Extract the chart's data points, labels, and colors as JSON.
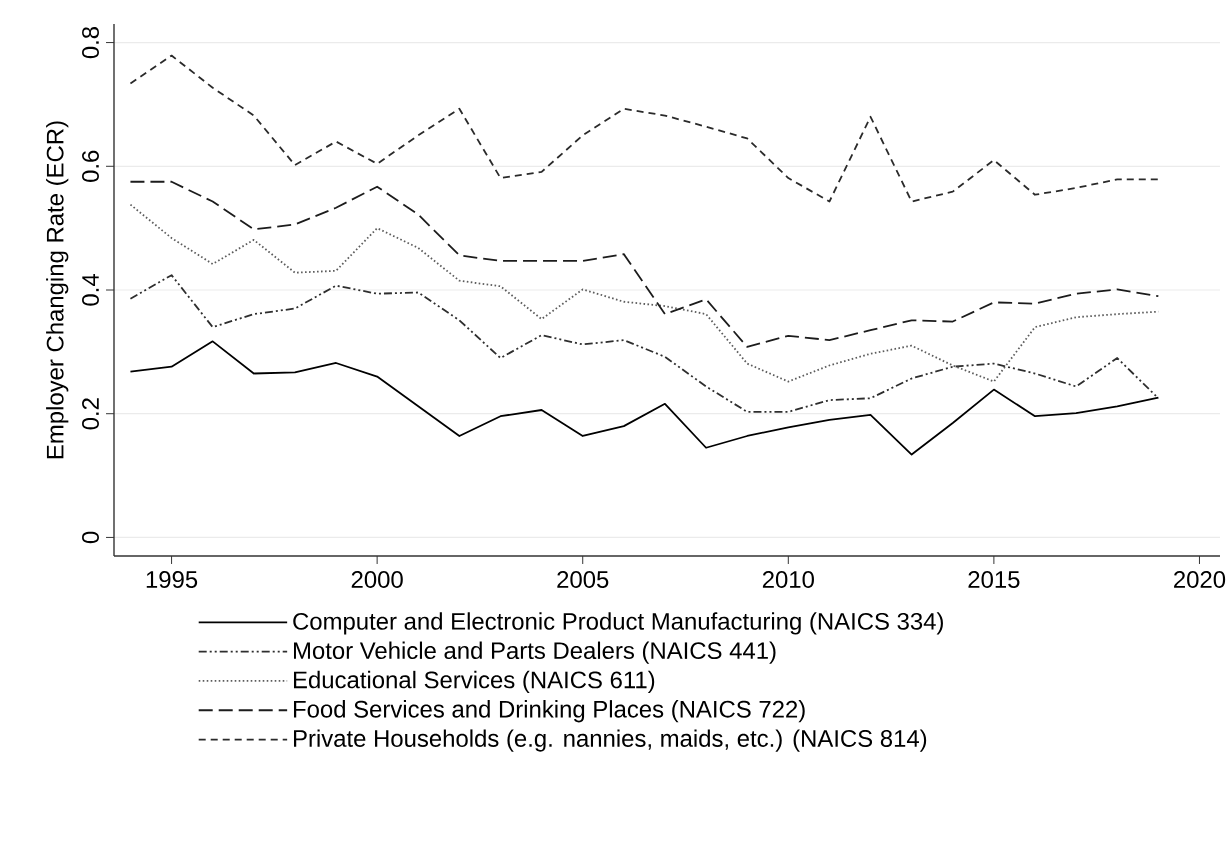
{
  "chart_data": {
    "type": "line",
    "ylabel": "Employer Changing Rate (ECR)",
    "x": [
      1994,
      1995,
      1996,
      1997,
      1998,
      1999,
      2000,
      2001,
      2002,
      2003,
      2004,
      2005,
      2006,
      2007,
      2008,
      2009,
      2010,
      2011,
      2012,
      2013,
      2014,
      2015,
      2016,
      2017,
      2018,
      2019
    ],
    "series": [
      {
        "name": "Computer and Electronic Product Manufacturing (NAICS 334)",
        "color": "#000000",
        "line_style": "solid",
        "values": [
          0.268,
          0.276,
          0.317,
          0.265,
          0.267,
          0.282,
          0.26,
          0.212,
          0.164,
          0.196,
          0.206,
          0.164,
          0.18,
          0.216,
          0.145,
          0.164,
          0.178,
          0.19,
          0.198,
          0.134,
          0.185,
          0.239,
          0.196,
          0.201,
          0.212,
          0.226
        ]
      },
      {
        "name": "Motor Vehicle and Parts Dealers (NAICS 441)",
        "color": "#2e2e2e",
        "line_style": "dashdot",
        "values": [
          0.386,
          0.424,
          0.34,
          0.361,
          0.37,
          0.407,
          0.394,
          0.396,
          0.351,
          0.29,
          0.327,
          0.312,
          0.319,
          0.292,
          0.244,
          0.203,
          0.203,
          0.222,
          0.225,
          0.257,
          0.276,
          0.281,
          0.265,
          0.244,
          0.29,
          0.225
        ]
      },
      {
        "name": "Educational Services (NAICS 611)",
        "color": "#5c5c5c",
        "line_style": "dotted",
        "values": [
          0.538,
          0.484,
          0.442,
          0.481,
          0.428,
          0.431,
          0.5,
          0.468,
          0.415,
          0.406,
          0.353,
          0.401,
          0.381,
          0.374,
          0.361,
          0.281,
          0.252,
          0.278,
          0.297,
          0.31,
          0.278,
          0.252,
          0.34,
          0.356,
          0.361,
          0.365
        ]
      },
      {
        "name": "Food Services and Drinking Places (NAICS 722)",
        "color": "#1c1c1c",
        "line_style": "long dashed",
        "values": [
          0.575,
          0.575,
          0.543,
          0.498,
          0.506,
          0.533,
          0.567,
          0.522,
          0.456,
          0.447,
          0.447,
          0.447,
          0.458,
          0.361,
          0.385,
          0.308,
          0.326,
          0.319,
          0.335,
          0.351,
          0.349,
          0.38,
          0.378,
          0.394,
          0.401,
          0.39
        ]
      },
      {
        "name": "Private Households (e.g. nannies, maids, etc.) (NAICS 814)",
        "color": "#2a2a2a",
        "line_style": "dashed",
        "values": [
          0.734,
          0.779,
          0.727,
          0.682,
          0.602,
          0.64,
          0.604,
          0.65,
          0.693,
          0.581,
          0.591,
          0.65,
          0.693,
          0.682,
          0.664,
          0.645,
          0.581,
          0.543,
          0.68,
          0.543,
          0.559,
          0.61,
          0.554,
          0.565,
          0.579,
          0.579
        ]
      }
    ],
    "xlim": [
      1993.6,
      2020.5
    ],
    "ylim": [
      -0.03,
      0.83
    ],
    "xticks": [
      1995,
      2000,
      2005,
      2010,
      2015,
      2020
    ],
    "yticks": [
      0,
      0.2,
      0.4,
      0.6,
      0.8
    ],
    "grid": "y",
    "legend": "bottom",
    "marker": "none"
  }
}
